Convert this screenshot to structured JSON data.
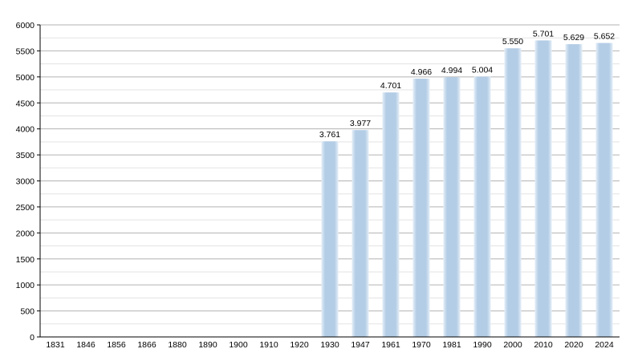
{
  "chart_data": {
    "type": "bar",
    "title": "",
    "xlabel": "",
    "ylabel": "",
    "ylim": [
      0,
      6000
    ],
    "yticks": [
      0,
      500,
      1000,
      1500,
      2000,
      2500,
      3000,
      3500,
      4000,
      4500,
      5000,
      5500,
      6000
    ],
    "grid": true,
    "legend": "none",
    "categories": [
      "1831",
      "1846",
      "1856",
      "1866",
      "1880",
      "1890",
      "1900",
      "1910",
      "1920",
      "1930",
      "1947",
      "1961",
      "1970",
      "1981",
      "1990",
      "2000",
      "2010",
      "2020",
      "2024"
    ],
    "values": [
      null,
      null,
      null,
      null,
      null,
      null,
      null,
      null,
      null,
      3761,
      3977,
      4701,
      4966,
      4994,
      5004,
      5550,
      5701,
      5629,
      5652
    ],
    "data_labels": [
      "",
      "",
      "",
      "",
      "",
      "",
      "",
      "",
      "",
      "3.761",
      "3.977",
      "4.701",
      "4.966",
      "4.994",
      "5.004",
      "5.550",
      "5.701",
      "5.629",
      "5.652"
    ],
    "colors": {
      "bar": "#b4cde6",
      "bar_edge": "#e4eef8",
      "grid": "#b3b3b3",
      "minor_grid": "#e3e3e3",
      "axis": "#000000"
    }
  }
}
